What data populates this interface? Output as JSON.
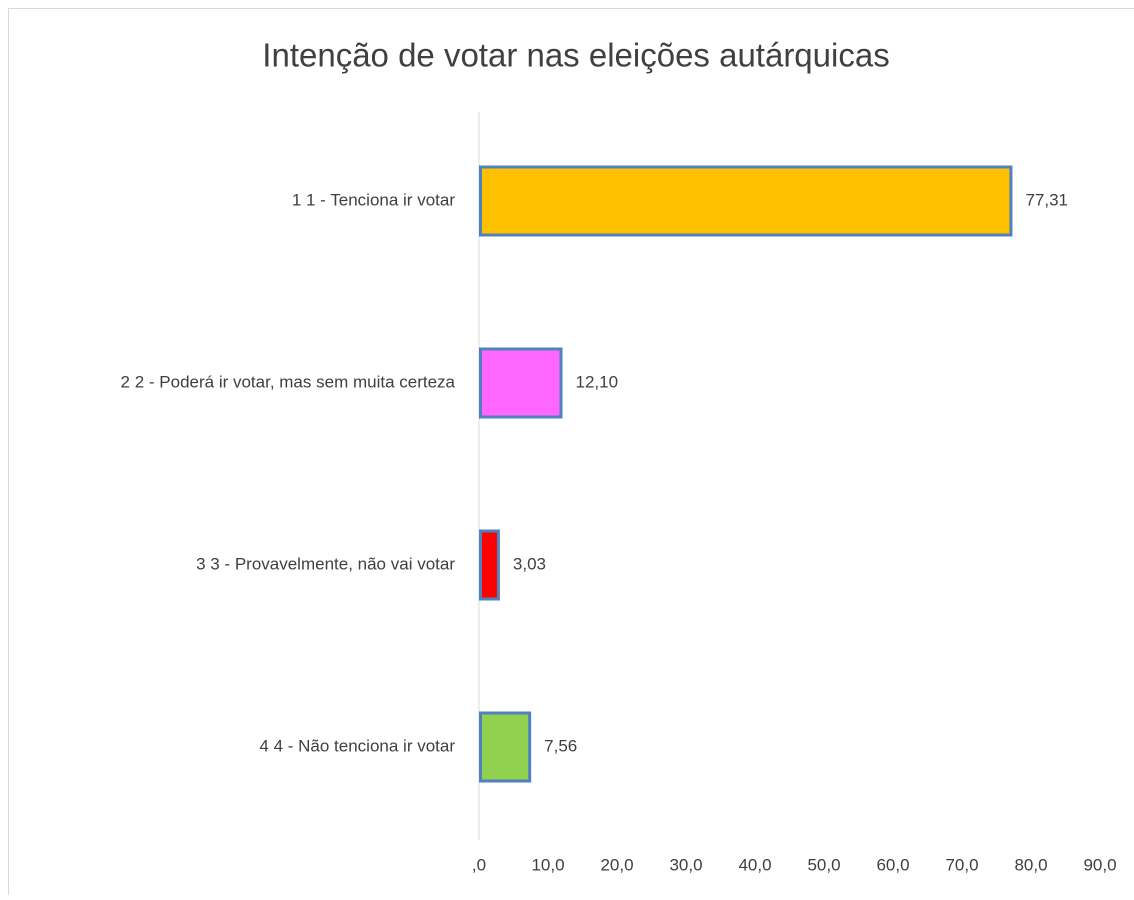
{
  "chart_data": {
    "type": "bar",
    "orientation": "horizontal",
    "title": "Intenção de votar nas eleições autárquicas",
    "categories": [
      "1 1 - Tenciona ir votar",
      "2 2 - Poderá ir votar, mas sem muita certeza",
      "3 3 - Provavelmente, não vai votar",
      "4 4 - Não tenciona ir votar"
    ],
    "values": [
      77.31,
      12.1,
      3.03,
      7.56
    ],
    "value_labels": [
      "77,31",
      "12,10",
      "3,03",
      "7,56"
    ],
    "colors": [
      "#ffc000",
      "#ff66ff",
      "#ff0000",
      "#92d050"
    ],
    "edge_color": "#4f81bd",
    "xlim": [
      0,
      90
    ],
    "xticks": [
      {
        "value": 0,
        "label": ",0"
      },
      {
        "value": 10,
        "label": "10,0"
      },
      {
        "value": 20,
        "label": "20,0"
      },
      {
        "value": 30,
        "label": "30,0"
      },
      {
        "value": 40,
        "label": "40,0"
      },
      {
        "value": 50,
        "label": "50,0"
      },
      {
        "value": 60,
        "label": "60,0"
      },
      {
        "value": 70,
        "label": "70,0"
      },
      {
        "value": 80,
        "label": "80,0"
      },
      {
        "value": 90,
        "label": "90,0"
      }
    ],
    "grid": false
  }
}
